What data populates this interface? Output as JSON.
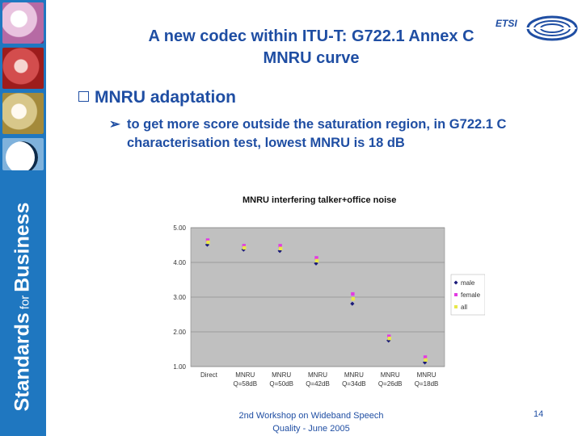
{
  "slide": {
    "title_line1": "A new codec within ITU-T: G722.1 Annex C",
    "title_line2": "MNRU curve",
    "bullet_main": "MNRU adaptation",
    "bullet_sub": "to get more score outside the saturation region, in G722.1 C characterisation test, lowest MNRU is 18 dB",
    "sidebar_text_a": "Standards",
    "sidebar_text_b": "for",
    "sidebar_text_c": "Business",
    "logo_text": "ETSI",
    "footer_line1": "2nd Workshop on Wideband Speech",
    "footer_line2": "Quality - June 2005",
    "page_number": "14"
  },
  "colors": {
    "title": "#1f4ea3",
    "sidebar": "#1f77c0",
    "plot_bg": "#c0c0c0",
    "male": "#1a1a7a",
    "female": "#e23be2",
    "all": "#e8e84a"
  },
  "chart_data": {
    "type": "scatter",
    "title": "MNRU interfering talker+office noise",
    "categories": [
      [
        "Direct",
        ""
      ],
      [
        "MNRU",
        "Q=58dB"
      ],
      [
        "MNRU",
        "Q=50dB"
      ],
      [
        "MNRU",
        "Q=42dB"
      ],
      [
        "MNRU",
        "Q=34dB"
      ],
      [
        "MNRU",
        "Q=26dB"
      ],
      [
        "MNRU",
        "Q=18dB"
      ]
    ],
    "ylim": [
      1.0,
      5.0
    ],
    "yticks": [
      "1.00",
      "2.00",
      "3.00",
      "4.00",
      "5.00"
    ],
    "grid": true,
    "legend": "right",
    "series": [
      {
        "name": "male",
        "values": [
          4.51,
          4.37,
          4.33,
          3.97,
          2.81,
          1.75,
          1.12
        ]
      },
      {
        "name": "female",
        "values": [
          4.64,
          4.48,
          4.48,
          4.13,
          3.09,
          1.87,
          1.27
        ]
      },
      {
        "name": "all",
        "values": [
          4.58,
          4.42,
          4.4,
          4.05,
          2.95,
          1.81,
          1.19
        ]
      }
    ]
  }
}
